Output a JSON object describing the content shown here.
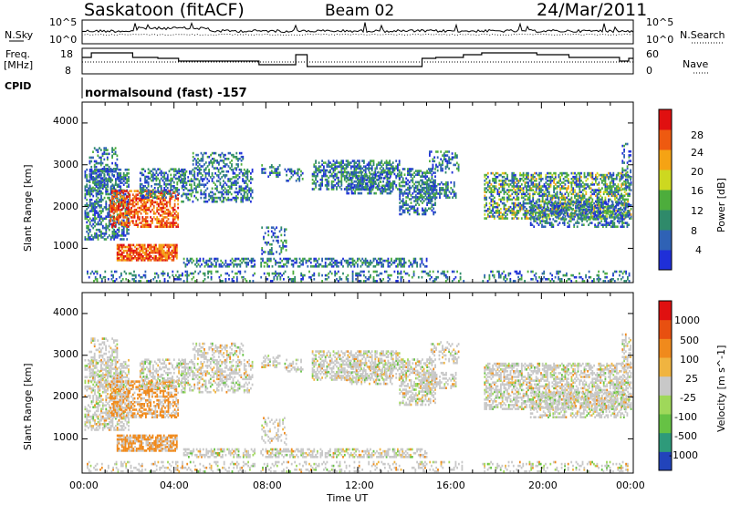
{
  "header": {
    "station": "Saskatoon (fitACF)",
    "beam": "Beam 02",
    "date": "24/Mar/2011"
  },
  "top_panels": {
    "nsky_label": "N.Sky",
    "nsearch_label": "N.Search",
    "noise_ticks": [
      "10^5",
      "10^0"
    ],
    "freq_label_line1": "Freq.",
    "freq_label_line2": "[MHz]",
    "freq_ticks": [
      "18",
      "8"
    ],
    "nave_label": "Nave",
    "nave_ticks": [
      "60",
      "0"
    ],
    "cpid_label": "CPID",
    "cpid_text": "normalsound (fast) -157"
  },
  "chart_data": [
    {
      "type": "heatmap",
      "name": "power",
      "xlabel": "Time UT",
      "ylabel": "Slant Range [km]",
      "xlim": [
        0,
        24
      ],
      "ylim": [
        180,
        4500
      ],
      "yticks": [
        "1000",
        "2000",
        "3000",
        "4000"
      ],
      "xticks": [
        "00:00",
        "04:00",
        "08:00",
        "12:00",
        "16:00",
        "20:00",
        "00:00"
      ],
      "colorbar_label": "Power [dB]",
      "colorbar_ticks": [
        "4",
        "8",
        "12",
        "16",
        "20",
        "24",
        "28"
      ],
      "colorbar_colors": [
        "#1f2fd8",
        "#2f62b5",
        "#2f8a6a",
        "#4dad3c",
        "#cdd820",
        "#f5a314",
        "#ee5a10",
        "#e01010"
      ],
      "data_gap_hours": [
        [
          7.5,
          7.7
        ],
        [
          16.6,
          17.4
        ]
      ]
    },
    {
      "type": "heatmap",
      "name": "velocity",
      "xlabel": "Time UT",
      "ylabel": "Slant Range [km]",
      "xlim": [
        0,
        24
      ],
      "ylim": [
        180,
        4500
      ],
      "yticks": [
        "1000",
        "2000",
        "3000",
        "4000"
      ],
      "xticks": [
        "00:00",
        "04:00",
        "08:00",
        "12:00",
        "16:00",
        "20:00",
        "00:00"
      ],
      "colorbar_label": "Velocity [m s^-1]",
      "colorbar_ticks": [
        "1000",
        "500",
        "100",
        "25",
        "-25",
        "-100",
        "-500",
        "-1000"
      ],
      "colorbar_colors": [
        "#2244bb",
        "#2e9a7a",
        "#66c244",
        "#9fd85a",
        "#c8c8c8",
        "#f0b440",
        "#f08a1c",
        "#e85010",
        "#e01010"
      ],
      "data_gap_hours": [
        [
          7.5,
          7.7
        ],
        [
          16.6,
          17.4
        ]
      ]
    }
  ]
}
